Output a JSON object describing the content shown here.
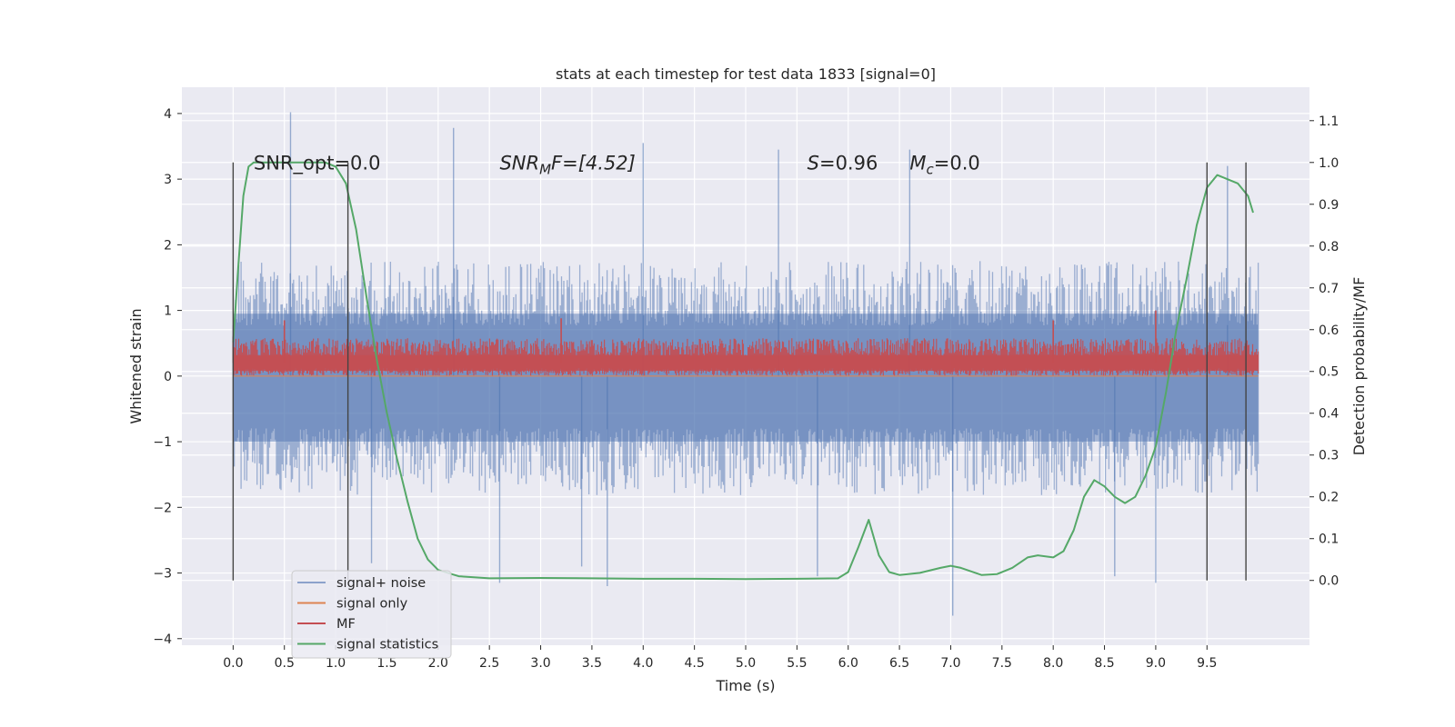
{
  "chart_data": {
    "type": "line",
    "title": "stats at each timestep for test data 1833 [signal=0]",
    "xlabel": "Time (s)",
    "ylabel": "Whitened strain",
    "y2label": "Detection probability/MF",
    "xlim": [
      -0.5,
      10.5
    ],
    "ylim": [
      -4.1,
      4.4
    ],
    "y2lim": [
      -0.155,
      1.18
    ],
    "x_ticks": [
      "0.0",
      "0.5",
      "1.0",
      "1.5",
      "2.0",
      "2.5",
      "3.0",
      "3.5",
      "4.0",
      "4.5",
      "5.0",
      "5.5",
      "6.0",
      "6.5",
      "7.0",
      "7.5",
      "8.0",
      "8.5",
      "9.0",
      "9.5"
    ],
    "y_ticks": [
      "4",
      "3",
      "2",
      "1",
      "0",
      "−1",
      "−2",
      "−3",
      "−4"
    ],
    "y2_ticks": [
      "1.1",
      "1.0",
      "0.9",
      "0.8",
      "0.7",
      "0.6",
      "0.5",
      "0.4",
      "0.3",
      "0.2",
      "0.1",
      "0.0"
    ],
    "grid": true,
    "legend_position": "bottom-left",
    "vlines_x": [
      0.0,
      1.12,
      9.5,
      9.88
    ],
    "vlines_y2": [
      0.0,
      1.0
    ],
    "annotations": [
      {
        "x": 0.2,
        "y": 3.15,
        "prefix": "SNR_opt",
        "sub": "",
        "suffix": "=0.0",
        "italic": false
      },
      {
        "x": 2.6,
        "y": 3.15,
        "prefix": "SNR",
        "sub": "M",
        "suffix": "F=[4.52]",
        "italic": true
      },
      {
        "x": 5.6,
        "y": 3.15,
        "prefix": "S",
        "sub": "",
        "suffix": "=0.96",
        "italic": true
      },
      {
        "x": 6.6,
        "y": 3.15,
        "prefix": "M",
        "sub": "c",
        "suffix": "=0.0",
        "italic": true
      }
    ],
    "series": [
      {
        "name": "signal+ noise",
        "color": "#4c72b0",
        "kind": "noise",
        "x_range": [
          0.0,
          10.0
        ],
        "band": [
          -1.45,
          1.4
        ],
        "spikes": [
          [
            0.56,
            4.02
          ],
          [
            2.15,
            3.78
          ],
          [
            4.0,
            3.55
          ],
          [
            5.32,
            3.45
          ],
          [
            6.6,
            3.45
          ],
          [
            9.7,
            3.2
          ],
          [
            7.02,
            -3.65
          ],
          [
            9.0,
            -3.15
          ],
          [
            3.65,
            -3.2
          ],
          [
            2.6,
            -3.15
          ],
          [
            3.4,
            -2.9
          ],
          [
            8.6,
            -3.05
          ],
          [
            1.35,
            -2.85
          ],
          [
            5.7,
            -3.05
          ]
        ]
      },
      {
        "name": "signal only",
        "color": "#dd8452",
        "kind": "flat",
        "x_range": [
          0.0,
          10.0
        ],
        "y": 0.0
      },
      {
        "name": "MF",
        "color": "#c44e52",
        "kind": "mf",
        "x_range": [
          0.0,
          10.0
        ],
        "band": [
          0.0,
          0.55
        ],
        "spikes": [
          [
            0.5,
            0.85
          ],
          [
            3.2,
            0.88
          ],
          [
            8.0,
            0.85
          ],
          [
            9.0,
            1.0
          ],
          [
            0.0,
            0.6
          ]
        ]
      },
      {
        "name": "signal statistics",
        "color": "#55a868",
        "kind": "line",
        "axis": "right",
        "x": [
          0.0,
          0.05,
          0.1,
          0.15,
          0.2,
          0.3,
          0.5,
          0.7,
          0.9,
          1.0,
          1.1,
          1.2,
          1.3,
          1.4,
          1.5,
          1.6,
          1.7,
          1.8,
          1.9,
          2.0,
          2.2,
          2.5,
          3.0,
          3.5,
          4.0,
          4.5,
          5.0,
          5.5,
          5.9,
          6.0,
          6.1,
          6.2,
          6.3,
          6.4,
          6.5,
          6.7,
          6.9,
          7.0,
          7.1,
          7.3,
          7.45,
          7.6,
          7.75,
          7.85,
          8.0,
          8.1,
          8.2,
          8.3,
          8.4,
          8.5,
          8.6,
          8.7,
          8.8,
          8.9,
          9.0,
          9.1,
          9.2,
          9.3,
          9.4,
          9.5,
          9.6,
          9.7,
          9.8,
          9.9,
          9.95
        ],
        "y": [
          0.57,
          0.75,
          0.92,
          0.99,
          1.0,
          1.0,
          1.0,
          1.0,
          1.0,
          0.99,
          0.95,
          0.84,
          0.68,
          0.53,
          0.4,
          0.29,
          0.19,
          0.1,
          0.05,
          0.025,
          0.01,
          0.005,
          0.006,
          0.005,
          0.004,
          0.004,
          0.003,
          0.004,
          0.005,
          0.02,
          0.08,
          0.145,
          0.06,
          0.02,
          0.013,
          0.018,
          0.03,
          0.035,
          0.03,
          0.013,
          0.015,
          0.03,
          0.055,
          0.06,
          0.055,
          0.07,
          0.12,
          0.2,
          0.24,
          0.225,
          0.2,
          0.185,
          0.2,
          0.25,
          0.32,
          0.45,
          0.6,
          0.72,
          0.85,
          0.94,
          0.97,
          0.96,
          0.95,
          0.92,
          0.88
        ]
      }
    ]
  }
}
